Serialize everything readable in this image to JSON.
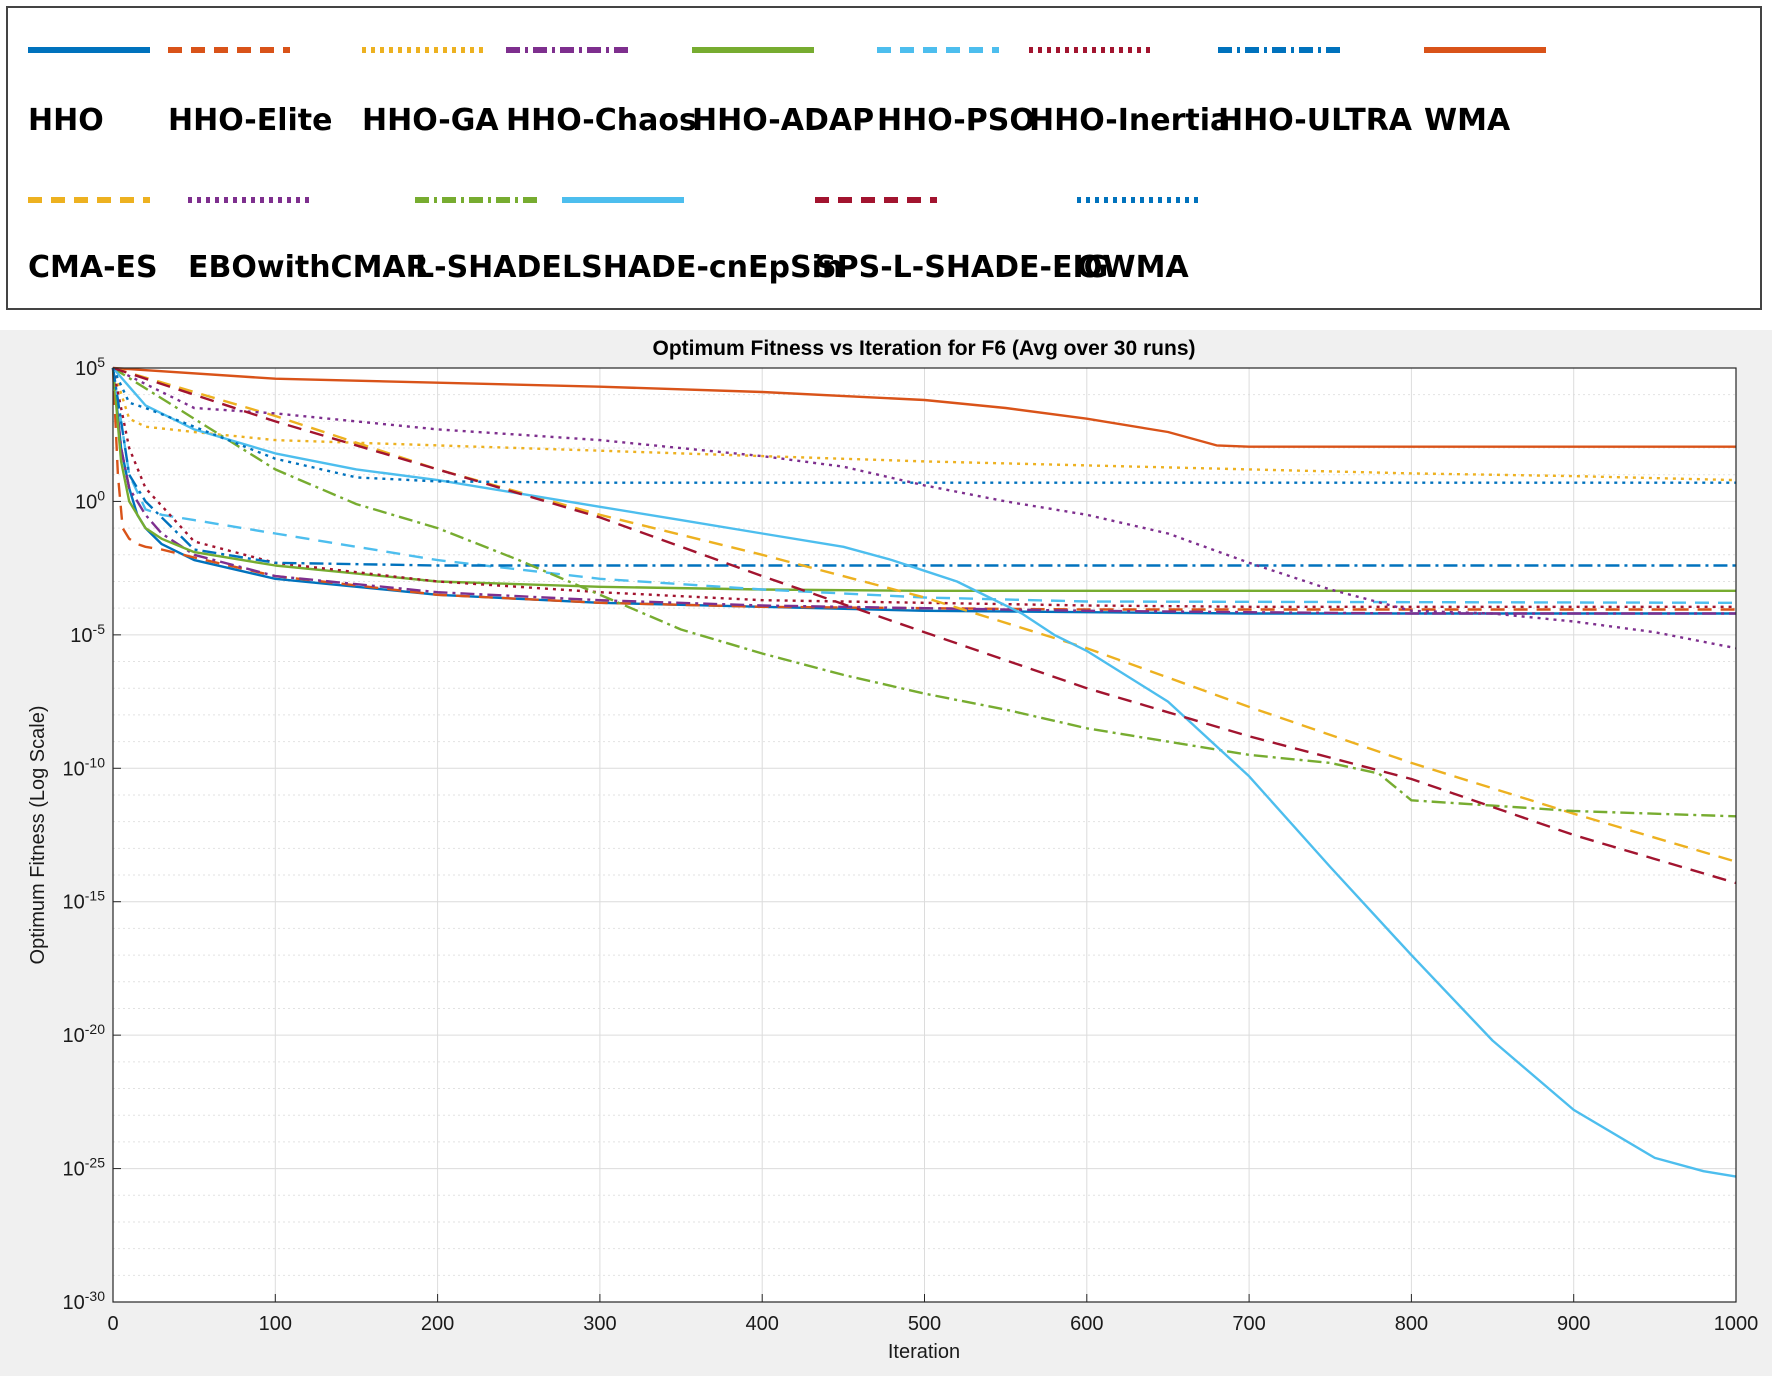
{
  "chart_data": {
    "type": "line",
    "title": "Optimum Fitness vs Iteration for F6 (Avg over 30 runs)",
    "xlabel": "Iteration",
    "ylabel": "Optimum Fitness (Log Scale)",
    "xlim": [
      0,
      1000
    ],
    "ylim": [
      1e-30,
      100000.0
    ],
    "yscale": "log",
    "grid": true,
    "legend_position": "top-outside",
    "x_ticks": [
      "0",
      "100",
      "200",
      "300",
      "400",
      "500",
      "600",
      "700",
      "800",
      "900",
      "1000"
    ],
    "y_ticks": [
      {
        "base": "10",
        "exp": "5"
      },
      {
        "base": "10",
        "exp": "0"
      },
      {
        "base": "10",
        "exp": "-5"
      },
      {
        "base": "10",
        "exp": "-10"
      },
      {
        "base": "10",
        "exp": "-15"
      },
      {
        "base": "10",
        "exp": "-20"
      },
      {
        "base": "10",
        "exp": "-25"
      },
      {
        "base": "10",
        "exp": "-30"
      }
    ],
    "series": [
      {
        "name": "HHO",
        "color": "#0072bd",
        "dash": "solid",
        "x": [
          0,
          5,
          10,
          15,
          20,
          30,
          50,
          100,
          200,
          300,
          400,
          500,
          600,
          700,
          800,
          900,
          1000
        ],
        "log10y": [
          5,
          2,
          0.5,
          -0.5,
          -1,
          -1.6,
          -2.2,
          -2.9,
          -3.5,
          -3.8,
          -3.95,
          -4.1,
          -4.15,
          -4.2,
          -4.2,
          -4.2,
          -4.2
        ]
      },
      {
        "name": "HHO-Elite",
        "color": "#d95319",
        "dash": "dash",
        "x": [
          0,
          3,
          6,
          10,
          15,
          20,
          30,
          50,
          100,
          200,
          300,
          400,
          500,
          600,
          700,
          800,
          900,
          1000
        ],
        "log10y": [
          5,
          1,
          -1,
          -1.4,
          -1.6,
          -1.7,
          -1.8,
          -2.1,
          -2.8,
          -3.5,
          -3.8,
          -3.95,
          -4,
          -4.05,
          -4.05,
          -4.05,
          -4.05,
          -4.05
        ]
      },
      {
        "name": "HHO-GA",
        "color": "#edb120",
        "dash": "dot",
        "x": [
          0,
          10,
          20,
          50,
          100,
          200,
          300,
          400,
          500,
          600,
          700,
          800,
          900,
          1000
        ],
        "log10y": [
          5,
          3.1,
          2.8,
          2.6,
          2.3,
          2.1,
          1.9,
          1.7,
          1.5,
          1.35,
          1.2,
          1.05,
          0.95,
          0.8
        ]
      },
      {
        "name": "HHO-Chaos",
        "color": "#7e2f8e",
        "dash": "dashdot",
        "x": [
          0,
          5,
          10,
          20,
          30,
          50,
          100,
          200,
          300,
          400,
          500,
          600,
          700,
          800,
          900,
          1000
        ],
        "log10y": [
          5,
          2,
          0.5,
          -0.5,
          -1.2,
          -2,
          -2.8,
          -3.4,
          -3.7,
          -3.9,
          -4,
          -4.1,
          -4.15,
          -4.2,
          -4.2,
          -4.2
        ]
      },
      {
        "name": "HHO-ADAP",
        "color": "#77ac30",
        "dash": "solid",
        "x": [
          0,
          5,
          10,
          20,
          30,
          50,
          100,
          200,
          300,
          400,
          500,
          1000
        ],
        "log10y": [
          5,
          1.5,
          0,
          -1,
          -1.4,
          -1.9,
          -2.4,
          -3,
          -3.2,
          -3.3,
          -3.35,
          -3.35
        ]
      },
      {
        "name": "HHO-PSO",
        "color": "#4dbeee",
        "dash": "dash",
        "x": [
          0,
          10,
          20,
          30,
          50,
          100,
          200,
          300,
          400,
          500,
          600,
          1000
        ],
        "log10y": [
          5,
          1,
          -0.3,
          -0.5,
          -0.7,
          -1.2,
          -2.2,
          -2.9,
          -3.3,
          -3.6,
          -3.75,
          -3.8
        ]
      },
      {
        "name": "HHO-Inertia",
        "color": "#a2142f",
        "dash": "dot",
        "x": [
          0,
          10,
          20,
          50,
          100,
          200,
          300,
          400,
          500,
          600,
          700,
          800,
          900,
          1000
        ],
        "log10y": [
          5,
          2,
          0.5,
          -1.5,
          -2.3,
          -3,
          -3.4,
          -3.7,
          -3.8,
          -3.9,
          -3.95,
          -3.95,
          -3.95,
          -3.95
        ]
      },
      {
        "name": "HHO-ULTRA",
        "color": "#0072bd",
        "dash": "dashdot",
        "x": [
          0,
          10,
          20,
          50,
          100,
          200,
          300,
          400,
          500,
          600,
          1000
        ],
        "log10y": [
          5,
          1,
          0,
          -1.8,
          -2.3,
          -2.4,
          -2.4,
          -2.4,
          -2.4,
          -2.4,
          -2.4
        ]
      },
      {
        "name": "WMA",
        "color": "#d95319",
        "dash": "solid",
        "x": [
          0,
          100,
          200,
          300,
          400,
          500,
          550,
          600,
          650,
          680,
          700,
          800,
          900,
          1000
        ],
        "log10y": [
          5,
          4.6,
          4.45,
          4.3,
          4.1,
          3.8,
          3.5,
          3.1,
          2.6,
          2.1,
          2.05,
          2.05,
          2.05,
          2.05
        ]
      },
      {
        "name": "CMA-ES",
        "color": "#edb120",
        "dash": "dash",
        "x": [
          0,
          100,
          200,
          300,
          400,
          500,
          600,
          700,
          800,
          900,
          1000
        ],
        "log10y": [
          5,
          3.2,
          1.2,
          -0.5,
          -2,
          -3.6,
          -5.5,
          -7.7,
          -9.8,
          -11.7,
          -13.5
        ]
      },
      {
        "name": "EBOwithCMAR",
        "color": "#7e2f8e",
        "dash": "dot",
        "x": [
          0,
          50,
          100,
          150,
          200,
          250,
          300,
          350,
          400,
          450,
          500,
          550,
          600,
          650,
          700,
          750,
          800,
          850,
          900,
          950,
          1000
        ],
        "log10y": [
          5,
          3.5,
          3.3,
          3,
          2.7,
          2.5,
          2.3,
          2,
          1.7,
          1.3,
          0.6,
          0,
          -0.5,
          -1.2,
          -2.3,
          -3.3,
          -4.1,
          -4.2,
          -4.5,
          -4.9,
          -5.5
        ]
      },
      {
        "name": "L-SHADE",
        "color": "#77ac30",
        "dash": "dashdot",
        "x": [
          0,
          100,
          150,
          200,
          250,
          300,
          350,
          400,
          450,
          500,
          550,
          600,
          650,
          700,
          750,
          780,
          800,
          850,
          900,
          950,
          1000
        ],
        "log10y": [
          5,
          1.2,
          -0.1,
          -1,
          -2.2,
          -3.5,
          -4.8,
          -5.7,
          -6.5,
          -7.2,
          -7.8,
          -8.5,
          -9,
          -9.5,
          -9.8,
          -10.2,
          -11.2,
          -11.4,
          -11.6,
          -11.7,
          -11.8
        ]
      },
      {
        "name": "LSHADE-cnEpSin",
        "color": "#4dbeee",
        "dash": "solid",
        "x": [
          0,
          20,
          50,
          100,
          150,
          200,
          250,
          300,
          350,
          400,
          450,
          480,
          500,
          520,
          540,
          560,
          580,
          600,
          650,
          700,
          750,
          800,
          850,
          900,
          950,
          980,
          1000
        ],
        "log10y": [
          5,
          3.6,
          2.7,
          1.8,
          1.2,
          0.8,
          0.3,
          -0.2,
          -0.7,
          -1.2,
          -1.7,
          -2.2,
          -2.6,
          -3,
          -3.6,
          -4.2,
          -5,
          -5.6,
          -7.5,
          -10.3,
          -13.7,
          -17,
          -20.2,
          -22.8,
          -24.6,
          -25.1,
          -25.3
        ]
      },
      {
        "name": "SPS-L-SHADE-EIG",
        "color": "#a2142f",
        "dash": "dash",
        "x": [
          0,
          100,
          200,
          300,
          400,
          500,
          600,
          700,
          800,
          900,
          1000
        ],
        "log10y": [
          5,
          3,
          1.2,
          -0.6,
          -2.8,
          -4.9,
          -7,
          -8.8,
          -10.4,
          -12.5,
          -14.3
        ]
      },
      {
        "name": "OWMA",
        "color": "#0072bd",
        "dash": "dot",
        "x": [
          0,
          10,
          20,
          50,
          100,
          150,
          200,
          300,
          400,
          500,
          600,
          700,
          800,
          900,
          1000
        ],
        "log10y": [
          5,
          3.7,
          3.5,
          2.8,
          1.6,
          0.9,
          0.75,
          0.7,
          0.7,
          0.7,
          0.7,
          0.7,
          0.7,
          0.7,
          0.7
        ]
      }
    ]
  }
}
